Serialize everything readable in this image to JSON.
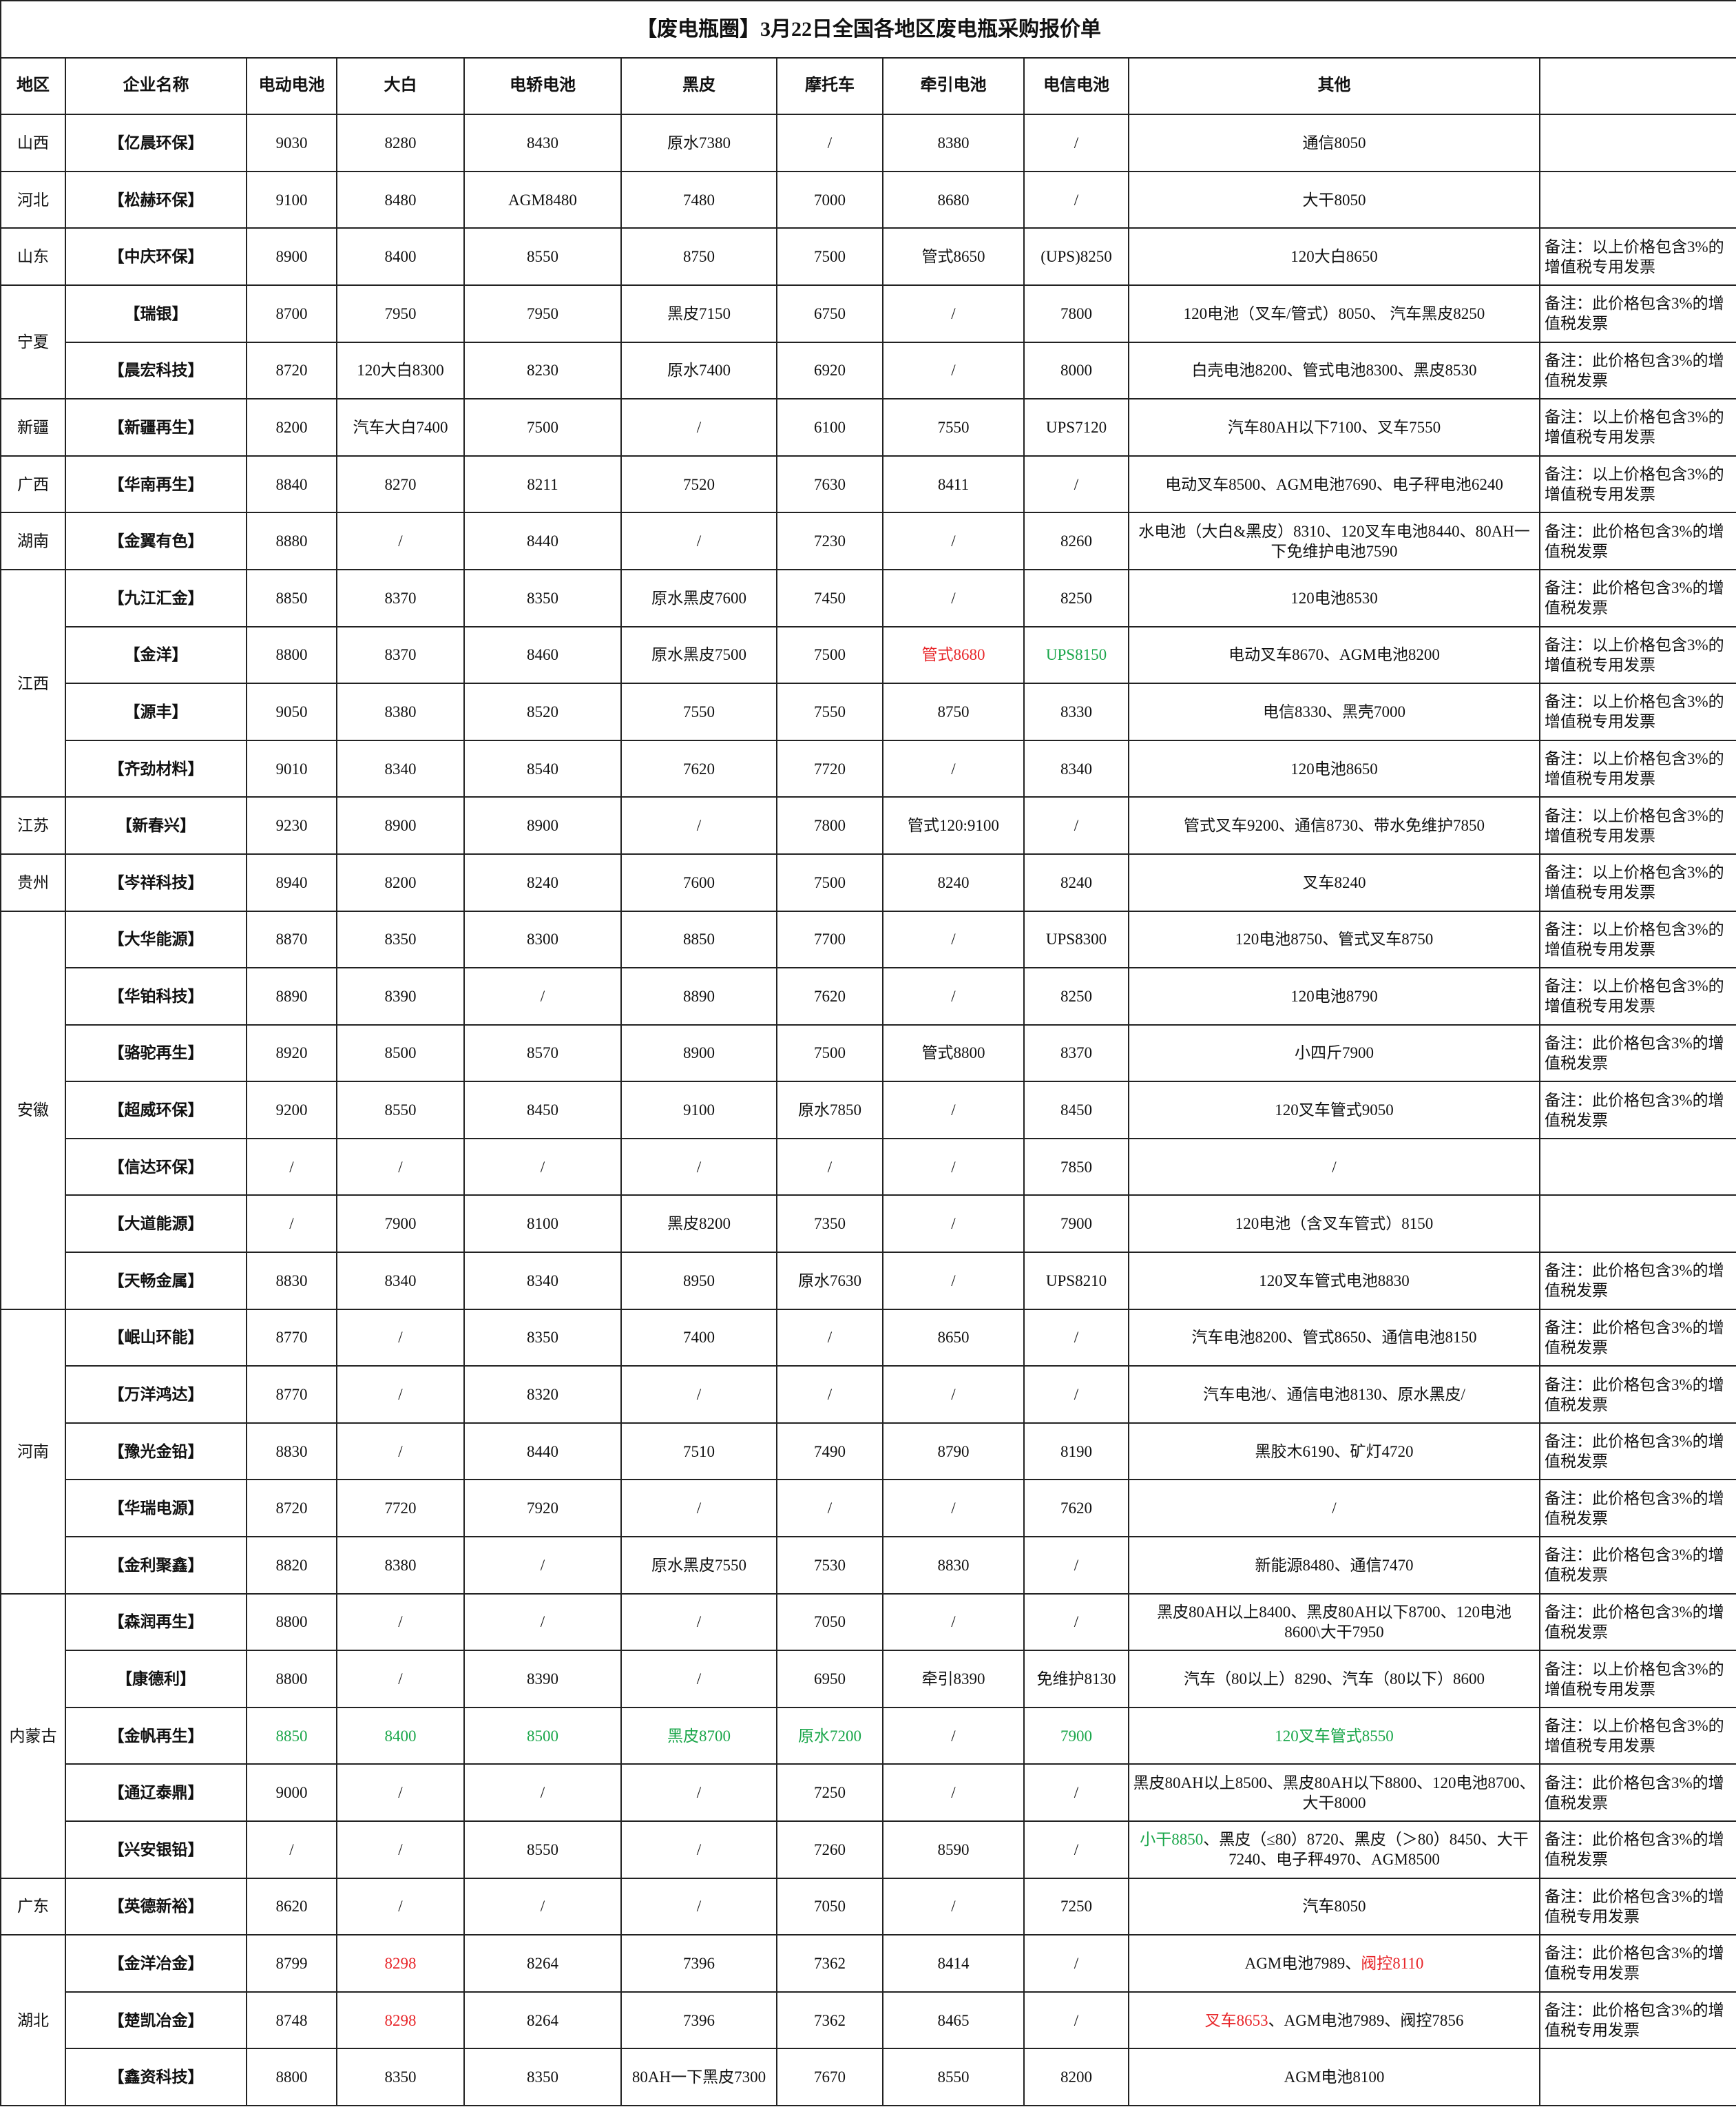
{
  "title": "【废电瓶圈】3月22日全国各地区废电瓶采购报价单",
  "headers": [
    "地区",
    "企业名称",
    "电动电池",
    "大白",
    "电轿电池",
    "黑皮",
    "摩托车",
    "牵引电池",
    "电信电池",
    "其他"
  ],
  "colors": {
    "red": "#e8262a",
    "green": "#1aa64a"
  },
  "groups": [
    {
      "region": "山西",
      "rows": [
        [
          "【亿晨环保】",
          9030,
          8280,
          8430,
          "原水7380",
          "/",
          8380,
          "/",
          "通信8050",
          null
        ]
      ]
    },
    {
      "region": "河北",
      "rows": [
        [
          "【松赫环保】",
          9100,
          8480,
          "AGM8480",
          7480,
          7000,
          8680,
          "/",
          "大干8050",
          null
        ]
      ]
    },
    {
      "region": "山东",
      "rows": [
        [
          "【中庆环保】",
          8900,
          8400,
          8550,
          8750,
          7500,
          "管式8650",
          "(UPS)8250",
          "120大白8650",
          "备注：以上价格包含3%的增值税专用发票"
        ]
      ]
    },
    {
      "region": "宁夏",
      "rows": [
        [
          "【瑞银】",
          8700,
          7950,
          7950,
          "黑皮7150",
          6750,
          "/",
          7800,
          "120电池（叉车/管式）8050、 汽车黑皮8250",
          "备注：此价格包含3%的增值税发票"
        ],
        [
          "【晨宏科技】",
          8720,
          "120大白8300",
          8230,
          "原水7400",
          6920,
          "/",
          8000,
          "白壳电池8200、管式电池8300、黑皮8530",
          "备注：此价格包含3%的增值税发票"
        ]
      ]
    },
    {
      "region": "新疆",
      "rows": [
        [
          "【新疆再生】",
          8200,
          "汽车大白7400",
          7500,
          "/",
          6100,
          7550,
          "UPS7120",
          "汽车80AH以下7100、叉车7550",
          "备注：以上价格包含3%的增值税专用发票"
        ]
      ]
    },
    {
      "region": "广西",
      "rows": [
        [
          "【华南再生】",
          8840,
          8270,
          8211,
          7520,
          7630,
          8411,
          "/",
          "电动叉车8500、AGM电池7690、电子秤电池6240",
          "备注：以上价格包含3%的增值税专用发票"
        ]
      ]
    },
    {
      "region": "湖南",
      "rows": [
        [
          "【金翼有色】",
          8880,
          "/",
          8440,
          "/",
          7230,
          "/",
          8260,
          "水电池（大白&黑皮）8310、120叉车电池8440、80AH一下免维护电池7590",
          "备注：此价格包含3%的增值税发票"
        ]
      ]
    },
    {
      "region": "江西",
      "rows": [
        [
          "【九江汇金】",
          8850,
          8370,
          8350,
          "原水黑皮7600",
          7450,
          "/",
          8250,
          "120电池8530",
          "备注：此价格包含3%的增值税发票"
        ],
        [
          "【金洋】",
          8800,
          8370,
          8460,
          "原水黑皮7500",
          7500,
          {
            "text": "管式8680",
            "color": "red"
          },
          {
            "text": "UPS8150",
            "color": "green"
          },
          "电动叉车8670、AGM电池8200",
          "备注：以上价格包含3%的增值税专用发票"
        ],
        [
          "【源丰】",
          9050,
          8380,
          8520,
          7550,
          7550,
          8750,
          8330,
          "电信8330、黑壳7000",
          "备注：以上价格包含3%的增值税专用发票"
        ],
        [
          "【齐劲材料】",
          9010,
          8340,
          8540,
          7620,
          7720,
          "/",
          8340,
          "120电池8650",
          "备注：以上价格包含3%的增值税专用发票"
        ]
      ]
    },
    {
      "region": "江苏",
      "rows": [
        [
          "【新春兴】",
          9230,
          8900,
          8900,
          "/",
          7800,
          "管式120:9100",
          "/",
          "管式叉车9200、通信8730、带水免维护7850",
          "备注：以上价格包含3%的增值税专用发票"
        ]
      ]
    },
    {
      "region": "贵州",
      "rows": [
        [
          "【岑祥科技】",
          8940,
          8200,
          8240,
          7600,
          7500,
          8240,
          8240,
          "叉车8240",
          "备注：以上价格包含3%的增值税专用发票"
        ]
      ]
    },
    {
      "region": "安徽",
      "rows": [
        [
          "【大华能源】",
          8870,
          8350,
          8300,
          8850,
          7700,
          "/",
          "UPS8300",
          "120电池8750、管式叉车8750",
          "备注：以上价格包含3%的增值税专用发票"
        ],
        [
          "【华铂科技】",
          8890,
          8390,
          "/",
          8890,
          7620,
          "/",
          8250,
          "120电池8790",
          "备注：以上价格包含3%的增值税专用发票"
        ],
        [
          "【骆驼再生】",
          8920,
          8500,
          8570,
          8900,
          7500,
          "管式8800",
          8370,
          "小四斤7900",
          "备注：此价格包含3%的增值税发票"
        ],
        [
          "【超威环保】",
          9200,
          8550,
          8450,
          9100,
          "原水7850",
          "/",
          8450,
          "120叉车管式9050",
          "备注：此价格包含3%的增值税发票"
        ],
        [
          "【信达环保】",
          "/",
          "/",
          "/",
          "/",
          "/",
          "/",
          7850,
          "/",
          null
        ],
        [
          "【大道能源】",
          "/",
          7900,
          8100,
          "黑皮8200",
          7350,
          "/",
          7900,
          "120电池（含叉车管式）8150",
          null
        ],
        [
          "【天畅金属】",
          8830,
          8340,
          8340,
          8950,
          "原水7630",
          "/",
          "UPS8210",
          "120叉车管式电池8830",
          "备注：此价格包含3%的增值税发票"
        ]
      ]
    },
    {
      "region": "河南",
      "rows": [
        [
          "【岷山环能】",
          8770,
          "/",
          8350,
          7400,
          "/",
          8650,
          "/",
          "汽车电池8200、管式8650、通信电池8150",
          "备注：此价格包含3%的增值税发票"
        ],
        [
          "【万洋鸿达】",
          8770,
          "/",
          8320,
          "/",
          "/",
          "/",
          "/",
          "汽车电池/、通信电池8130、原水黑皮/",
          "备注：此价格包含3%的增值税发票"
        ],
        [
          "【豫光金铅】",
          8830,
          "/",
          8440,
          7510,
          7490,
          8790,
          8190,
          "黑胶木6190、矿灯4720",
          "备注：此价格包含3%的增值税发票"
        ],
        [
          "【华瑞电源】",
          8720,
          7720,
          7920,
          "/",
          "/",
          "/",
          7620,
          "/",
          "备注：此价格包含3%的增值税发票"
        ],
        [
          "【金利聚鑫】",
          8820,
          8380,
          "/",
          "原水黑皮7550",
          7530,
          8830,
          "/",
          "新能源8480、通信7470",
          "备注：此价格包含3%的增值税发票"
        ]
      ]
    },
    {
      "region": "内蒙古",
      "rows": [
        [
          "【森润再生】",
          8800,
          "/",
          "/",
          "/",
          7050,
          "/",
          "/",
          "黑皮80AH以上8400、黑皮80AH以下8700、120电池8600\\大干7950",
          "备注：此价格包含3%的增值税发票"
        ],
        [
          "【康德利】",
          8800,
          "/",
          8390,
          "/",
          6950,
          "牵引8390",
          "免维护8130",
          "汽车（80以上）8290、汽车（80以下）8600",
          "备注：以上价格包含3%的增值税专用发票"
        ],
        [
          "【金帆再生】",
          {
            "text": 8850,
            "color": "green"
          },
          {
            "text": 8400,
            "color": "green"
          },
          {
            "text": 8500,
            "color": "green"
          },
          {
            "text": "黑皮8700",
            "color": "green"
          },
          {
            "text": "原水7200",
            "color": "green"
          },
          "/",
          {
            "text": 7900,
            "color": "green"
          },
          {
            "text": "120叉车管式8550",
            "color": "green"
          },
          "备注：以上价格包含3%的增值税专用发票"
        ],
        [
          "【通辽泰鼎】",
          9000,
          "/",
          "/",
          "/",
          7250,
          "/",
          "/",
          "黑皮80AH以上8500、黑皮80AH以下8800、120电池8700、大干8000",
          "备注：此价格包含3%的增值税发票"
        ],
        [
          "【兴安银铅】",
          "/",
          "/",
          8550,
          "/",
          7260,
          8590,
          "/",
          [
            {
              "text": "小干8850",
              "color": "green"
            },
            "、黑皮（≤80）8720、黑皮（＞80）8450、大干7240、电子秤4970、AGM8500"
          ],
          "备注：此价格包含3%的增值税发票"
        ]
      ]
    },
    {
      "region": "广东",
      "rows": [
        [
          "【英德新裕】",
          8620,
          "/",
          "/",
          "/",
          7050,
          "/",
          7250,
          "汽车8050",
          "备注：此价格包含3%的增值税专用发票"
        ]
      ]
    },
    {
      "region": "湖北",
      "rows": [
        [
          "【金洋冶金】",
          8799,
          {
            "text": 8298,
            "color": "red"
          },
          8264,
          7396,
          7362,
          8414,
          "/",
          [
            "AGM电池7989、",
            {
              "text": "阀控8110",
              "color": "red"
            }
          ],
          "备注：此价格包含3%的增值税专用发票"
        ],
        [
          "【楚凯冶金】",
          8748,
          {
            "text": 8298,
            "color": "red"
          },
          8264,
          7396,
          7362,
          8465,
          "/",
          [
            {
              "text": "叉车8653",
              "color": "red"
            },
            "、AGM电池7989、阀控7856"
          ],
          "备注：此价格包含3%的增值税专用发票"
        ],
        [
          "【鑫资科技】",
          8800,
          8350,
          8350,
          "80AH一下黑皮7300",
          7670,
          8550,
          8200,
          "AGM电池8100",
          null
        ]
      ]
    }
  ]
}
